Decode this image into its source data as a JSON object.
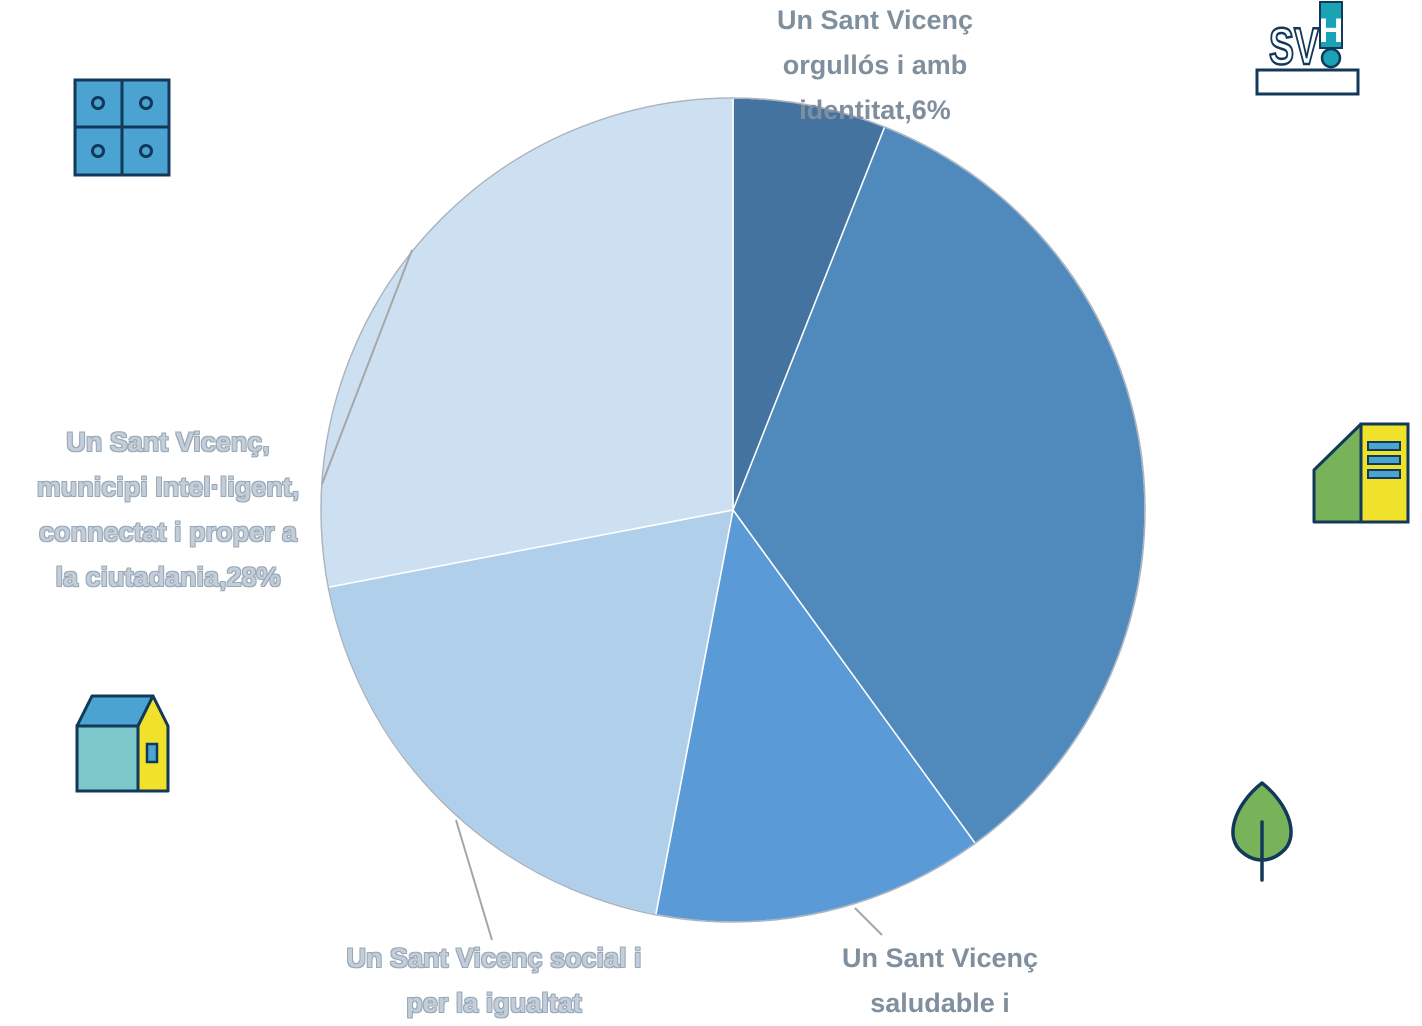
{
  "chart_data": {
    "type": "pie",
    "title": "",
    "slices": [
      {
        "label": "Un Sant Vicenç orgullós i amb identitat",
        "value": 6,
        "data_label": "Un Sant Vicenç orgullós i amb identitat,6%",
        "color": "#44739f"
      },
      {
        "label": "Un Sant Vicenç saludable i ...",
        "value": 34,
        "data_label": null,
        "color": "#508abd"
      },
      {
        "label": "Un Sant Vicenç saludable i ...",
        "value": 13,
        "data_label": "Un Sant Vicenç saludable i ...",
        "color": "#5a9ad6"
      },
      {
        "label": "Un Sant Vicenç social i per la igualtat",
        "value": 19,
        "data_label": "Un Sant Vicenç social i per la igualtat",
        "color": "#b0cfeb"
      },
      {
        "label": "Un Sant Vicenç, municipi Intel·ligent, connectat i proper a la ciutadania",
        "value": 28,
        "data_label": "Un Sant Vicenç, municipi Intel·ligent, connectat i proper a la ciutadania,28%",
        "color": "#cde0f2"
      }
    ]
  },
  "labels": {
    "top": [
      "Un Sant Vicenç",
      "orgullós i amb",
      "identitat,6%"
    ],
    "left": [
      "Un Sant Vicenç,",
      "municipi Intel·ligent,",
      "connectat i proper a",
      "la ciutadania,28%"
    ],
    "bottom_left": [
      "Un Sant Vicenç social i",
      "per la igualtat"
    ],
    "bottom_right": [
      "Un Sant Vicenç",
      "saludable i"
    ]
  },
  "logo": {
    "line1": "SV",
    "line2": "H"
  },
  "icons": [
    "grid-window-icon",
    "house-icon",
    "building-icon",
    "leaf-icon"
  ],
  "colors": {
    "outline": "#12385a",
    "teal": "#1aa3b5",
    "yellow": "#f0e12a",
    "green": "#78b35a",
    "blue": "#4aa3d0",
    "aqua": "#7ec8cc"
  }
}
